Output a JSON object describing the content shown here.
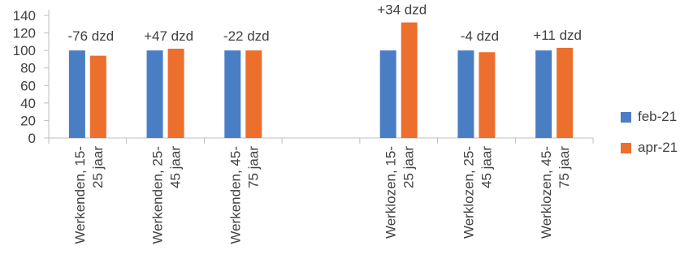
{
  "chart_data": {
    "type": "bar",
    "title": "",
    "xlabel": "",
    "ylabel": "",
    "ylim": [
      0,
      140
    ],
    "yticks": [
      0,
      20,
      40,
      60,
      80,
      100,
      120,
      140
    ],
    "grid": false,
    "legend_position": "right",
    "categories": [
      [
        "Werkenden, 15-",
        "25 jaar"
      ],
      [
        "Werkenden, 25-",
        "45 jaar"
      ],
      [
        "Werkenden, 45-",
        "75 jaar"
      ],
      [
        "",
        ""
      ],
      [
        "Werklozen, 15-",
        "25 jaar"
      ],
      [
        "Werklozen, 25-",
        "45 jaar"
      ],
      [
        "Werklozen, 45-",
        "75 jaar"
      ]
    ],
    "series": [
      {
        "name": "feb-21",
        "color": "#4a7ec4",
        "values": [
          100,
          100,
          100,
          null,
          100,
          100,
          100
        ]
      },
      {
        "name": "apr-21",
        "color": "#ec6f2d",
        "values": [
          94,
          102,
          100,
          null,
          132,
          98,
          103
        ]
      }
    ],
    "annotations": [
      "-76 dzd",
      "+47 dzd",
      "-22 dzd",
      "",
      "+34 dzd",
      "-4 dzd",
      "+11 dzd"
    ]
  }
}
